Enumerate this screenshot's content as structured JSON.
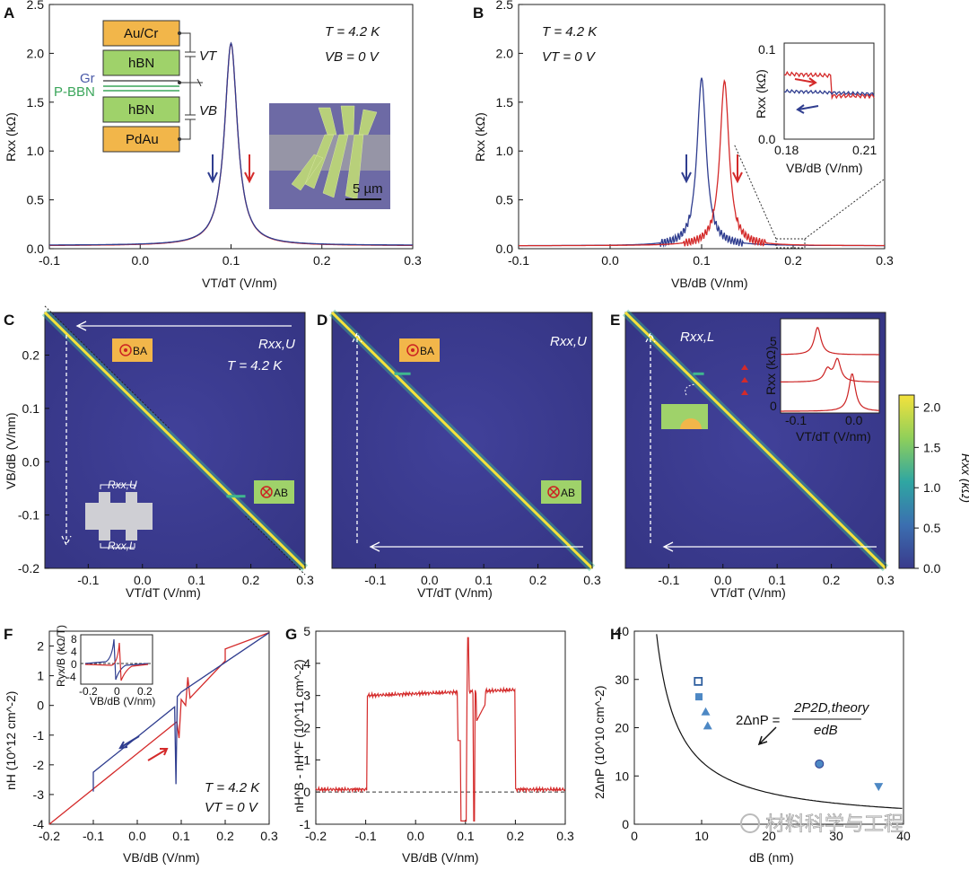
{
  "watermark": "材料科学与工程",
  "colors": {
    "blue": "#2f3d8f",
    "red": "#d42a2a",
    "gold": "#f2b64a",
    "green": "#9fd26a",
    "map_bg": "#3a3a8c",
    "ridge": "#f4e23c",
    "ridge_mid": "#3fb78f"
  },
  "stack_labels": {
    "top_gate": "Au/Cr",
    "hbn1": "hBN",
    "graphene": "Gr",
    "pbbn": "P-BBN",
    "hbn2": "hBN",
    "bottom_gate": "PdAu",
    "vt": "VT",
    "vb": "VB",
    "scale_bar": "5 µm"
  },
  "domain_labels": {
    "ba": "BA",
    "ab": "AB"
  },
  "chart_data": [
    {
      "panel": "A",
      "type": "line",
      "title": "",
      "annotations": [
        "T = 4.2 K",
        "VB = 0 V"
      ],
      "xlabel": "VT/dT (V/nm)",
      "ylabel": "Rxx (kΩ)",
      "xlim": [
        -0.1,
        0.3
      ],
      "ylim": [
        0,
        2.5
      ],
      "xticks": [
        "-0.1",
        "0.0",
        "0.1",
        "0.2",
        "0.3"
      ],
      "yticks": [
        "0.0",
        "0.5",
        "1.0",
        "1.5",
        "2.0",
        "2.5"
      ],
      "series": [
        {
          "name": "forward",
          "color": "red",
          "peak_x": 0.1,
          "peak_y": 2.1,
          "base": 0.03,
          "width": 0.0085
        },
        {
          "name": "backward",
          "color": "blue",
          "peak_x": 0.1,
          "peak_y": 2.1,
          "base": 0.03,
          "width": 0.0085
        }
      ]
    },
    {
      "panel": "B",
      "type": "line",
      "annotations": [
        "T = 4.2 K",
        "VT = 0 V"
      ],
      "xlabel": "VB/dB (V/nm)",
      "ylabel": "Rxx (kΩ)",
      "xlim": [
        -0.1,
        0.3
      ],
      "ylim": [
        0,
        2.5
      ],
      "xticks": [
        "-0.1",
        "0.0",
        "0.1",
        "0.2",
        "0.3"
      ],
      "yticks": [
        "0.0",
        "0.5",
        "1.0",
        "1.5",
        "2.0",
        "2.5"
      ],
      "series": [
        {
          "name": "backward",
          "color": "blue",
          "peak_x": 0.1,
          "peak_y": 1.75,
          "base": 0.03,
          "width": 0.006
        },
        {
          "name": "forward",
          "color": "red",
          "peak_x": 0.125,
          "peak_y": 1.72,
          "base": 0.03,
          "width": 0.006
        }
      ],
      "inset": {
        "xlabel": "VB/dB (V/nm)",
        "ylabel": "Rxx (kΩ)",
        "xlim": [
          0.18,
          0.21
        ],
        "ylim": [
          0,
          0.1
        ],
        "xticks": [
          "0.18",
          "0.21"
        ],
        "yticks": [
          "0.0",
          "0.1"
        ],
        "switch_x": 0.196
      }
    },
    {
      "panel": "C",
      "type": "heatmap",
      "label": "Rxx,U",
      "annotation": "T = 4.2 K",
      "xlabel": "VT/dT (V/nm)",
      "ylabel": "VB/dB (V/nm)",
      "xlim": [
        -0.18,
        0.3
      ],
      "ylim": [
        -0.2,
        0.28
      ],
      "xticks": [
        "-0.1",
        "0.0",
        "0.1",
        "0.2",
        "0.3"
      ],
      "yticks": [
        "-0.2",
        "-0.1",
        "0.0",
        "0.1",
        "0.2"
      ],
      "ridge": "VB/dB + VT/dT = 0.1",
      "switch_at": {
        "vt_start": 0.155,
        "vt_end": 0.19,
        "vb": -0.065
      },
      "sweep": "VT backward then VB backward",
      "channel_labels": [
        "Rxx,U",
        "Rxx,L"
      ]
    },
    {
      "panel": "D",
      "type": "heatmap",
      "label": "Rxx,U",
      "xlabel": "VT/dT (V/nm)",
      "ylabel": "VB/dB (V/nm)",
      "xlim": [
        -0.18,
        0.3
      ],
      "ylim": [
        -0.2,
        0.28
      ],
      "xticks": [
        "-0.1",
        "0.0",
        "0.1",
        "0.2",
        "0.3"
      ],
      "yticks": [],
      "ridge": "VB/dB + VT/dT = 0.1",
      "switch_at": {
        "vt_start": -0.065,
        "vt_end": -0.035,
        "vb": 0.165
      }
    },
    {
      "panel": "E",
      "type": "heatmap",
      "label": "Rxx,L",
      "xlabel": "VT/dT (V/nm)",
      "ylabel": "VB/dB (V/nm)",
      "xlim": [
        -0.18,
        0.3
      ],
      "ylim": [
        -0.2,
        0.28
      ],
      "xticks": [
        "-0.1",
        "0.0",
        "0.1",
        "0.2",
        "0.3"
      ],
      "yticks": [],
      "ridge": "VB/dB + VT/dT = 0.1",
      "switch_at": {
        "vt_start": -0.055,
        "vt_end": -0.035,
        "vb": 0.165
      },
      "inset": {
        "xlabel": "VT/dT (V/nm)",
        "ylabel": "Rxx (kΩ)",
        "xticks": [
          "-0.1",
          "0.0"
        ],
        "yticks": [
          "5",
          "0"
        ],
        "xlim": [
          -0.15,
          0.05
        ],
        "ylim": [
          0,
          5.5
        ],
        "curves": [
          {
            "offset": 3.3,
            "peaks": [
              {
                "x": -0.075,
                "h": 1.6
              }
            ]
          },
          {
            "offset": 1.7,
            "peaks": [
              {
                "x": -0.055,
                "h": 0.7
              },
              {
                "x": -0.035,
                "h": 1.3
              }
            ]
          },
          {
            "offset": 0,
            "peaks": [
              {
                "x": -0.005,
                "h": 2.2
              }
            ]
          }
        ]
      }
    },
    {
      "panel": "colorbar",
      "type": "heatmap",
      "label": "Rxx (kΩ)",
      "range": [
        0,
        2.15
      ],
      "ticks": [
        "0.0",
        "0.5",
        "1.0",
        "1.5",
        "2.0"
      ]
    },
    {
      "panel": "F",
      "type": "line",
      "annotations": [
        "T = 4.2 K",
        "VT = 0 V"
      ],
      "xlabel": "VB/dB (V/nm)",
      "ylabel": "nH (10^12 cm^-2)",
      "xlim": [
        -0.2,
        0.3
      ],
      "ylim": [
        -4,
        2.5
      ],
      "xticks": [
        "-0.2",
        "-0.1",
        "0.0",
        "0.1",
        "0.2",
        "0.3"
      ],
      "yticks": [
        "-4",
        "-3",
        "-2",
        "-1",
        "0",
        "1",
        "2"
      ],
      "series": [
        {
          "name": "forward",
          "color": "red",
          "x": [
            -0.2,
            0.2,
            0.3
          ],
          "y": [
            -4.0,
            1.5,
            2.45
          ],
          "jump": {
            "x": 0.2,
            "to": 1.9
          }
        },
        {
          "name": "backward",
          "color": "blue",
          "x": [
            -0.1,
            0.1,
            0.3
          ],
          "y": [
            -2.9,
            -0.4,
            2.45
          ],
          "jump": {
            "x": -0.1,
            "from": -2.25
          }
        }
      ],
      "inset": {
        "xlabel": "VB/dB (V/nm)",
        "ylabel": "Ryx/B (kΩ/T)",
        "xticks": [
          "-0.2",
          "0",
          "0.2"
        ],
        "yticks": [
          "8",
          "4",
          "0",
          "-4"
        ]
      }
    },
    {
      "panel": "G",
      "type": "line",
      "xlabel": "VB/dB (V/nm)",
      "ylabel": "nH^B - nH^F (10^11 cm^-2)",
      "xlim": [
        -0.2,
        0.3
      ],
      "ylim": [
        -1,
        5
      ],
      "xticks": [
        "-0.2",
        "-0.1",
        "0.0",
        "0.1",
        "0.2",
        "0.3"
      ],
      "yticks": [
        "-1",
        "0",
        "1",
        "2",
        "3",
        "4",
        "5"
      ],
      "series": [
        {
          "name": "difference",
          "color": "red",
          "plateau": [
            -0.097,
            0.2
          ],
          "level": 3.0,
          "dip_x": 0.097,
          "dip_y": -0.9,
          "spike_x": 0.105,
          "spike_y": 4.8
        }
      ]
    },
    {
      "panel": "H",
      "type": "scatter",
      "xlabel": "dB (nm)",
      "ylabel": "2ΔnP (10^10 cm^-2)",
      "xlim": [
        0,
        40
      ],
      "ylim": [
        0,
        40
      ],
      "xticks": [
        "0",
        "10",
        "20",
        "30",
        "40"
      ],
      "yticks": [
        "0",
        "10",
        "20",
        "30",
        "40"
      ],
      "formula": {
        "lhs": "2ΔnP =",
        "num": "2P2D,theory",
        "den": "edB",
        "k": 130
      },
      "points": [
        {
          "x": 9.5,
          "y": 29.6,
          "marker": "open-square"
        },
        {
          "x": 9.6,
          "y": 26.4,
          "marker": "filled-square"
        },
        {
          "x": 10.6,
          "y": 23.3,
          "marker": "triangle-up"
        },
        {
          "x": 10.9,
          "y": 20.4,
          "marker": "triangle-up"
        },
        {
          "x": 27.5,
          "y": 12.5,
          "marker": "circle"
        },
        {
          "x": 36.3,
          "y": 7.8,
          "marker": "triangle-down"
        }
      ]
    }
  ]
}
